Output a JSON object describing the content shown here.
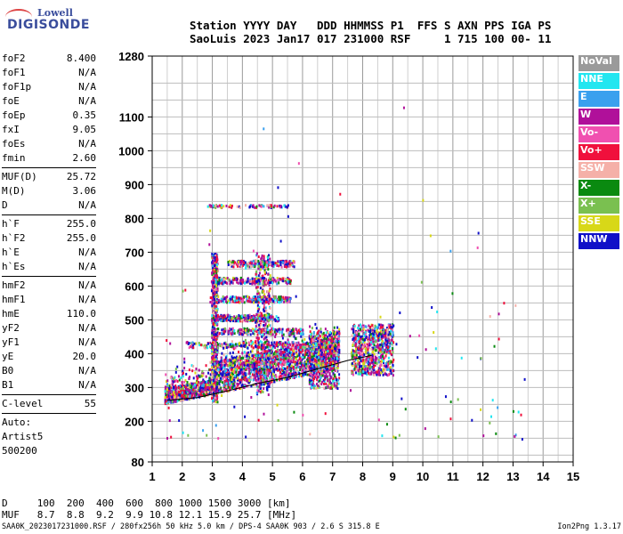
{
  "logo": {
    "top": "Lowell",
    "bottom": "DIGISONDE"
  },
  "header": {
    "line1": "Station YYYY DAY   DDD HHMMSS P1  FFS S AXN PPS IGA PS",
    "line2": "SaoLuis 2023 Jan17 017 231000 RSF     1 715 100 00- 11"
  },
  "params_groups": [
    [
      [
        "foF2",
        "8.400"
      ],
      [
        "foF1",
        "N/A"
      ],
      [
        "foF1p",
        "N/A"
      ],
      [
        "foE",
        "N/A"
      ],
      [
        "foEp",
        "0.35"
      ],
      [
        "fxI",
        "9.05"
      ],
      [
        "foEs",
        "N/A"
      ],
      [
        "fmin",
        "2.60"
      ]
    ],
    [
      [
        "MUF(D)",
        "25.72"
      ],
      [
        "M(D)",
        "3.06"
      ],
      [
        "D",
        "N/A"
      ]
    ],
    [
      [
        "h`F",
        "255.0"
      ],
      [
        "h`F2",
        "255.0"
      ],
      [
        "h`E",
        "N/A"
      ],
      [
        "h`Es",
        "N/A"
      ]
    ],
    [
      [
        "hmF2",
        "N/A"
      ],
      [
        "hmF1",
        "N/A"
      ],
      [
        "hmE",
        "110.0"
      ],
      [
        "yF2",
        "N/A"
      ],
      [
        "yF1",
        "N/A"
      ],
      [
        "yE",
        "20.0"
      ],
      [
        "B0",
        "N/A"
      ],
      [
        "B1",
        "N/A"
      ]
    ],
    [
      [
        "C-level",
        "55"
      ]
    ]
  ],
  "auto": [
    "Auto:",
    "Artist5",
    "500200"
  ],
  "legend": [
    {
      "label": "NoVal",
      "color": "#9a9a9a"
    },
    {
      "label": "NNE",
      "color": "#22e6f0"
    },
    {
      "label": "E",
      "color": "#3aa0ee"
    },
    {
      "label": "W",
      "color": "#b0109a"
    },
    {
      "label": "Vo-",
      "color": "#f050b0"
    },
    {
      "label": "Vo+",
      "color": "#f0103c"
    },
    {
      "label": "SSW",
      "color": "#f5b0a8"
    },
    {
      "label": "X-",
      "color": "#0a8a10"
    },
    {
      "label": "X+",
      "color": "#7ac050"
    },
    {
      "label": "SSE",
      "color": "#d8d818"
    },
    {
      "label": "NNW",
      "color": "#1010c8"
    }
  ],
  "chart_data": {
    "type": "scatter",
    "xlim": [
      1,
      15
    ],
    "ylim": [
      80,
      1280
    ],
    "x_ticks": [
      1,
      2,
      3,
      4,
      5,
      6,
      7,
      8,
      9,
      10,
      11,
      12,
      13,
      14,
      15
    ],
    "y_ticks": [
      80,
      200,
      300,
      400,
      500,
      600,
      700,
      800,
      900,
      1000,
      1100,
      1280
    ],
    "grid": true,
    "trace": [
      [
        1.5,
        262
      ],
      [
        2.5,
        270
      ],
      [
        3.5,
        290
      ],
      [
        4.5,
        312
      ],
      [
        5.5,
        330
      ],
      [
        6.5,
        355
      ],
      [
        7.5,
        380
      ],
      [
        8.3,
        395
      ]
    ]
  },
  "footer": {
    "d_row": "D     100  200  400  600  800 1000 1500 3000 [km]",
    "muf_row": "MUF   8.7  8.8  9.2  9.9 10.8 12.1 15.9 25.7 [MHz]"
  },
  "bottom": {
    "left": "SAA0K_2023017231000.RSF / 280fx256h 50 kHz 5.0 km / DPS-4 SAA0K 903 / 2.6 S 315.8 E",
    "right": "Ion2Png 1.3.17"
  }
}
